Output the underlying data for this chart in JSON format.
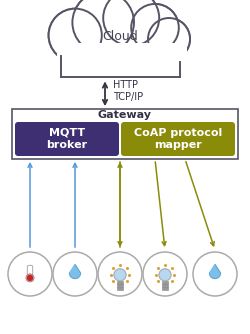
{
  "bg_color": "#ffffff",
  "cloud_color": "#ffffff",
  "cloud_edge_color": "#555566",
  "gateway_box_color": "#ffffff",
  "gateway_box_edge": "#555566",
  "mqtt_box_color": "#3d2f72",
  "mqtt_text_color": "#ffffff",
  "mqtt_text": "MQTT\nbroker",
  "coap_box_color": "#8b8b0a",
  "coap_text_color": "#ffffff",
  "coap_text": "CoAP protocol\nmapper",
  "gateway_label": "Gateway",
  "cloud_label": "Cloud",
  "http_label": "HTTP\nTCP/IP",
  "arrow_color_dark": "#333344",
  "arrow_color_blue": "#5599dd",
  "arrow_color_olive": "#8b8b0a",
  "drop_color": "#7bbfea",
  "thermo_red": "#cc2222",
  "bulb_color": "#b8d8f0",
  "bulb_glow_color": "#e0a030",
  "bulb_base_color": "#999999",
  "circle_edge": "#aaaaaa"
}
